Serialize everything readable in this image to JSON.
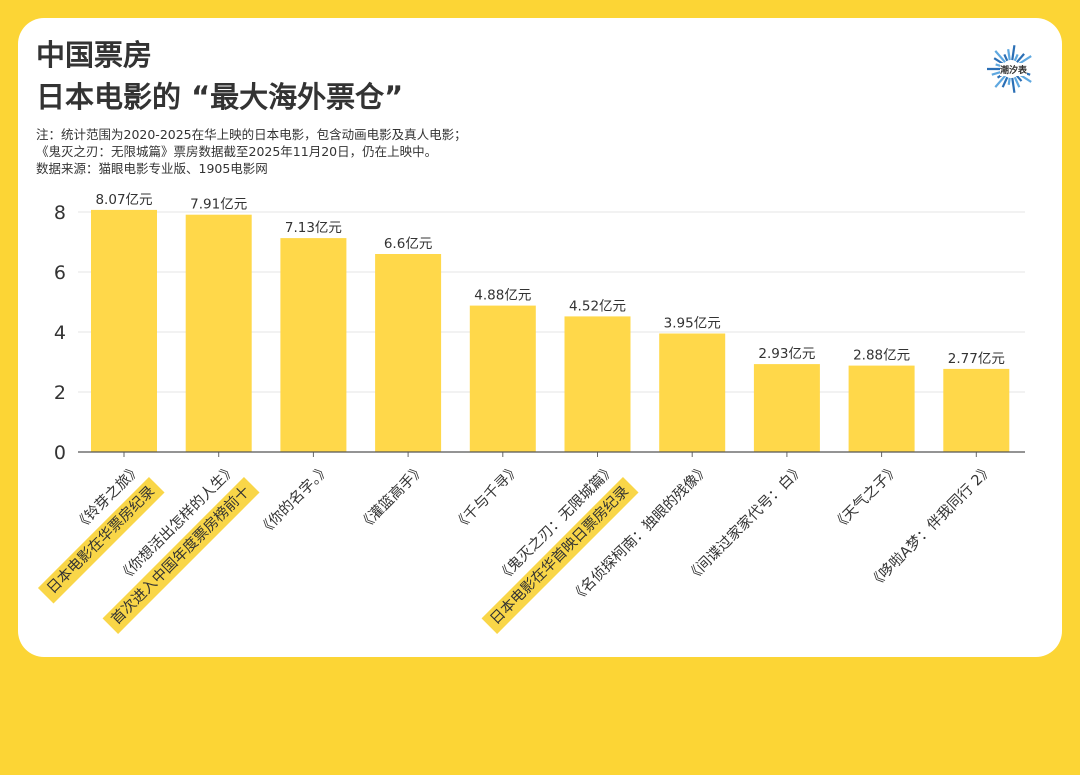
{
  "header": {
    "title_line1": "中国票房",
    "title_line2": "日本电影的 “最大海外票仓”",
    "note_line1": "注：统计范围为2020-2025在华上映的日本电影，包含动画电影及真人电影；",
    "note_line2": "《鬼灭之刃：无限城篇》票房数据截至2025年11月20日，仍在上映中。",
    "source": "数据来源：猫眼电影专业版、1905电影网",
    "logo_text": "潮汐表"
  },
  "colors": {
    "bar": "#FFD84A",
    "highlight": "#F9D648",
    "background": "#FCD535"
  },
  "chart_data": {
    "type": "bar",
    "categories": [
      "《铃芽之旅》",
      "《你想活出怎样的人生》",
      "《你的名字。》",
      "《灌篮高手》",
      "《千与千寻》",
      "《鬼灭之刃：无限城篇》",
      "《名侦探柯南：独眼的残像》",
      "《间谍过家家代号：白》",
      "《天气之子》",
      "《哆啦A梦：伴我同行 2》"
    ],
    "values": [
      8.07,
      7.91,
      7.13,
      6.6,
      4.88,
      4.52,
      3.95,
      2.93,
      2.88,
      2.77
    ],
    "data_labels": [
      "8.07亿元",
      "7.91亿元",
      "7.13亿元",
      "6.6亿元",
      "4.88亿元",
      "4.52亿元",
      "3.95亿元",
      "2.93亿元",
      "2.88亿元",
      "2.77亿元"
    ],
    "annotations": [
      "日本电影在华票房纪录",
      "首次进入中国年度票房榜前十",
      "",
      "",
      "",
      "日本电影在华首映日票房纪录",
      "",
      "",
      "",
      ""
    ],
    "yticks": [
      0,
      2,
      4,
      6,
      8
    ],
    "ylim": [
      0,
      8.5
    ],
    "grid": true,
    "unit": "亿元"
  }
}
